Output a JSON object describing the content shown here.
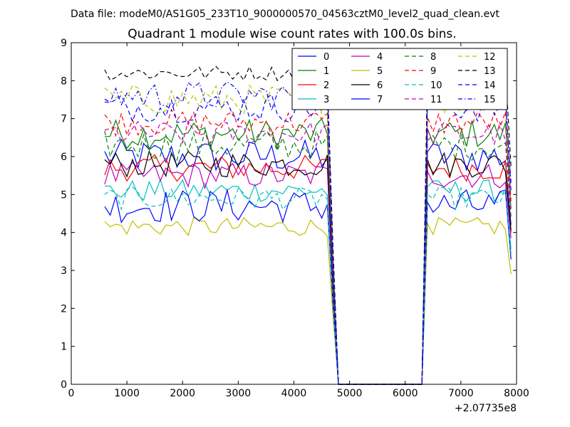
{
  "header": {
    "file_line": "Data file: modeM0/AS1G05_233T10_9000000570_04563cztM0_level2_quad_clean.evt"
  },
  "chart_data": {
    "type": "line",
    "title": "Quadrant 1 module wise count rates with 100.0s bins.",
    "xlabel": "",
    "ylabel": "",
    "x_offset_label": "+2.07735e8",
    "xlim": [
      0,
      8000
    ],
    "ylim": [
      0,
      9
    ],
    "xticks": [
      0,
      1000,
      2000,
      3000,
      4000,
      5000,
      6000,
      7000,
      8000
    ],
    "yticks": [
      0,
      1,
      2,
      3,
      4,
      5,
      6,
      7,
      8,
      9
    ],
    "grid": false,
    "legend_position": "top-right",
    "legend_columns": 4,
    "x_start": 600,
    "x_step": 100,
    "gap_zero_x": [
      4800,
      6300
    ],
    "ramp_in_x": 6400,
    "x_end": 7900,
    "series": [
      {
        "name": "0",
        "color": "#0000ff",
        "dash": "solid",
        "level": 6.0,
        "spread": 0.45
      },
      {
        "name": "1",
        "color": "#008000",
        "dash": "solid",
        "level": 6.6,
        "spread": 0.4
      },
      {
        "name": "2",
        "color": "#ff0000",
        "dash": "solid",
        "level": 5.7,
        "spread": 0.35
      },
      {
        "name": "3",
        "color": "#00bfbf",
        "dash": "solid",
        "level": 5.1,
        "spread": 0.3
      },
      {
        "name": "4",
        "color": "#bf00bf",
        "dash": "solid",
        "level": 5.5,
        "spread": 0.35
      },
      {
        "name": "5",
        "color": "#bfbf00",
        "dash": "solid",
        "level": 4.15,
        "spread": 0.25
      },
      {
        "name": "6",
        "color": "#000000",
        "dash": "solid",
        "level": 5.8,
        "spread": 0.35
      },
      {
        "name": "7",
        "color": "#0000ff",
        "dash": "solid",
        "level": 4.7,
        "spread": 0.45
      },
      {
        "name": "8",
        "color": "#008000",
        "dash": "dashed",
        "level": 6.3,
        "spread": 0.4
      },
      {
        "name": "9",
        "color": "#ff0000",
        "dash": "dashed",
        "level": 6.9,
        "spread": 0.35
      },
      {
        "name": "10",
        "color": "#00bfbf",
        "dash": "dashed",
        "level": 4.9,
        "spread": 0.3
      },
      {
        "name": "11",
        "color": "#bf00bf",
        "dash": "dashed",
        "level": 6.6,
        "spread": 0.35
      },
      {
        "name": "12",
        "color": "#bfbf00",
        "dash": "dashed",
        "level": 7.5,
        "spread": 0.4
      },
      {
        "name": "13",
        "color": "#000000",
        "dash": "dashed",
        "level": 8.2,
        "spread": 0.2
      },
      {
        "name": "14",
        "color": "#0000ff",
        "dash": "dashed",
        "level": 7.3,
        "spread": 0.4
      },
      {
        "name": "15",
        "color": "#0000ff",
        "dash": "dashdot",
        "level": 7.6,
        "spread": 0.4
      }
    ]
  }
}
